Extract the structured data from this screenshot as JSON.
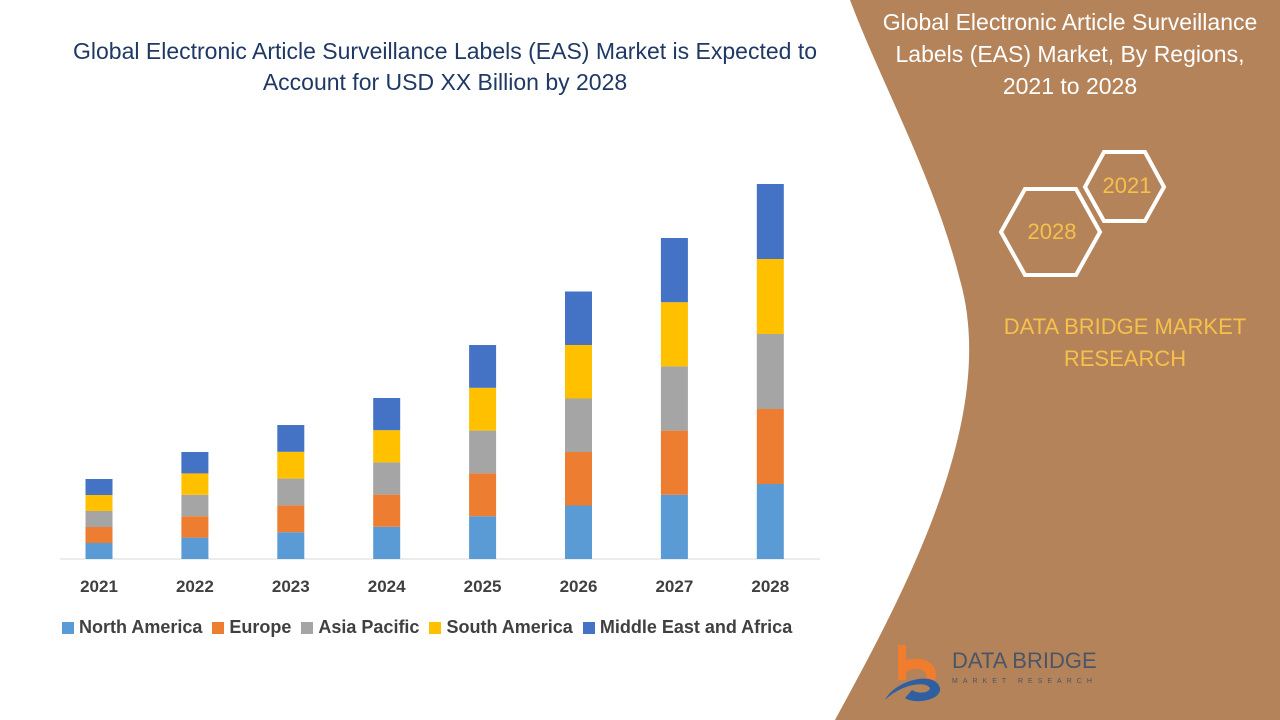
{
  "title": "Global Electronic Article Surveillance Labels (EAS) Market is Expected to Account for USD XX Billion by 2028",
  "side_panel": {
    "title": "Global Electronic Article Surveillance Labels (EAS) Market, By Regions, 2021 to 2028",
    "hex_start": "2021",
    "hex_end": "2028",
    "brand": "DATA BRIDGE MARKET RESEARCH",
    "panel_color": "#B5835A",
    "accent_color": "#F5C14A"
  },
  "logo": {
    "name": "DATA BRIDGE",
    "sub": "MARKET RESEARCH"
  },
  "chart_data": {
    "type": "bar",
    "stacked": true,
    "title": "",
    "xlabel": "",
    "ylabel": "",
    "y_axis_shown": false,
    "grid": false,
    "legend_position": "bottom",
    "categories": [
      "2021",
      "2022",
      "2023",
      "2024",
      "2025",
      "2026",
      "2027",
      "2028"
    ],
    "ylim": [
      0,
      390
    ],
    "series": [
      {
        "name": "North America",
        "color": "#5B9BD5",
        "values": [
          16,
          21.4,
          26.8,
          32.2,
          42.8,
          53.5,
          64.2,
          75
        ]
      },
      {
        "name": "Europe",
        "color": "#ED7D31",
        "values": [
          16,
          21.4,
          26.8,
          32.2,
          42.8,
          53.5,
          64.2,
          75
        ]
      },
      {
        "name": "Asia Pacific",
        "color": "#A5A5A5",
        "values": [
          16,
          21.4,
          26.8,
          32.2,
          42.8,
          53.5,
          64.2,
          75
        ]
      },
      {
        "name": "South America",
        "color": "#FFC000",
        "values": [
          16,
          21.4,
          26.8,
          32.2,
          42.8,
          53.5,
          64.2,
          75
        ]
      },
      {
        "name": "Middle East and Africa",
        "color": "#4472C4",
        "values": [
          16,
          21.4,
          26.8,
          32.2,
          42.8,
          53.5,
          64.2,
          75
        ]
      }
    ]
  }
}
